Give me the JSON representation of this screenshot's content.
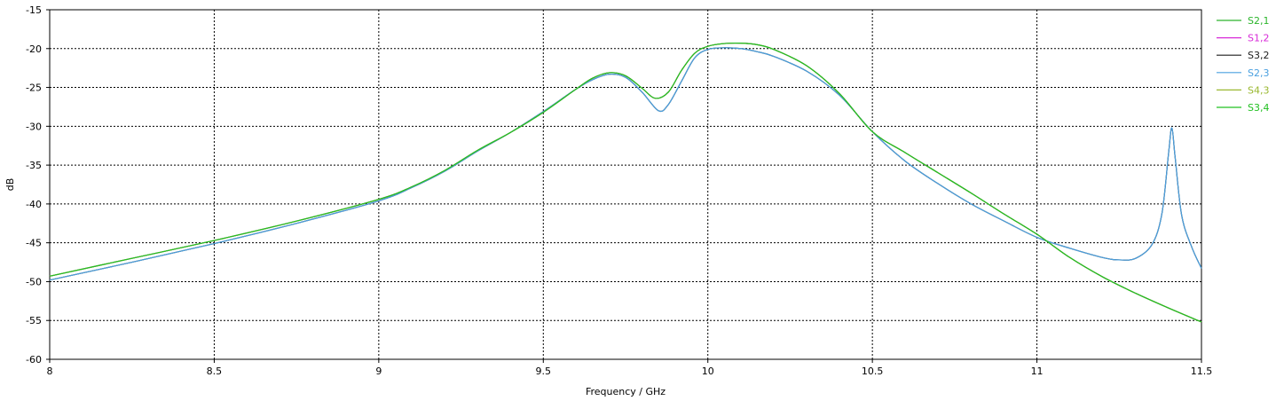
{
  "chart_data": {
    "type": "line",
    "title": "",
    "xlabel": "Frequency / GHz",
    "ylabel": "dB",
    "xlim": [
      8,
      11.5
    ],
    "ylim": [
      -60,
      -15
    ],
    "grid": true,
    "legend_position": "right",
    "x_ticks": [
      "8",
      "8.5",
      "9",
      "9.5",
      "10",
      "10.5",
      "11",
      "11.5"
    ],
    "y_ticks": [
      "-15",
      "-20",
      "-25",
      "-30",
      "-35",
      "-40",
      "-45",
      "-50",
      "-55",
      "-60"
    ],
    "series": [
      {
        "name": "S2,1",
        "color": "#2cb52c",
        "x": [
          8,
          8.25,
          8.5,
          8.75,
          9,
          9.1,
          9.2,
          9.3,
          9.4,
          9.5,
          9.6,
          9.65,
          9.7,
          9.75,
          9.8,
          9.84,
          9.88,
          9.92,
          9.96,
          10,
          10.05,
          10.1,
          10.15,
          10.2,
          10.3,
          10.4,
          10.5,
          10.6,
          10.7,
          10.8,
          10.9,
          11,
          11.1,
          11.2,
          11.3,
          11.4,
          11.5
        ],
        "y": [
          -49.3,
          -47.0,
          -44.7,
          -42.2,
          -39.4,
          -37.8,
          -35.7,
          -33.1,
          -30.8,
          -28.2,
          -25.2,
          -23.8,
          -23.1,
          -23.5,
          -25.1,
          -26.4,
          -25.6,
          -22.8,
          -20.6,
          -19.7,
          -19.35,
          -19.3,
          -19.5,
          -20.1,
          -22.2,
          -25.8,
          -30.7,
          -33.4,
          -36.0,
          -38.6,
          -41.3,
          -43.9,
          -46.9,
          -49.4,
          -51.5,
          -53.4,
          -55.2
        ]
      },
      {
        "name": "S1,2",
        "color": "#d82bd8",
        "x": [
          8,
          8.25,
          8.5,
          8.75,
          9,
          9.1,
          9.2,
          9.3,
          9.4,
          9.5,
          9.6,
          9.65,
          9.7,
          9.75,
          9.8,
          9.84,
          9.88,
          9.92,
          9.96,
          10,
          10.05,
          10.1,
          10.15,
          10.2,
          10.3,
          10.4,
          10.5,
          10.6,
          10.7,
          10.8,
          10.9,
          11,
          11.1,
          11.2,
          11.3,
          11.4,
          11.5
        ],
        "y": [
          -49.3,
          -47.0,
          -44.7,
          -42.2,
          -39.4,
          -37.8,
          -35.7,
          -33.1,
          -30.8,
          -28.2,
          -25.2,
          -23.8,
          -23.1,
          -23.5,
          -25.1,
          -26.4,
          -25.6,
          -22.8,
          -20.6,
          -19.7,
          -19.35,
          -19.3,
          -19.5,
          -20.1,
          -22.2,
          -25.8,
          -30.7,
          -33.4,
          -36.0,
          -38.6,
          -41.3,
          -43.9,
          -46.9,
          -49.4,
          -51.5,
          -53.4,
          -55.2
        ]
      },
      {
        "name": "S3,2",
        "color": "#1c1c1c",
        "x": [
          8,
          8.25,
          8.5,
          8.75,
          9,
          9.1,
          9.2,
          9.3,
          9.4,
          9.5,
          9.6,
          9.65,
          9.7,
          9.75,
          9.8,
          9.85,
          9.88,
          9.92,
          9.96,
          10,
          10.05,
          10.1,
          10.15,
          10.2,
          10.3,
          10.4,
          10.5,
          10.6,
          10.7,
          10.8,
          10.9,
          11,
          11.1,
          11.2,
          11.25,
          11.3,
          11.35,
          11.38,
          11.4,
          11.41,
          11.42,
          11.44,
          11.47,
          11.5
        ],
        "y": [
          -49.8,
          -47.5,
          -45.1,
          -42.5,
          -39.6,
          -37.9,
          -35.8,
          -33.2,
          -30.8,
          -28.1,
          -25.2,
          -24.0,
          -23.3,
          -23.7,
          -25.6,
          -28.0,
          -27.2,
          -24.2,
          -21.2,
          -20.1,
          -19.9,
          -20.0,
          -20.4,
          -21.0,
          -22.9,
          -26.0,
          -30.7,
          -34.5,
          -37.4,
          -40.0,
          -42.2,
          -44.3,
          -45.7,
          -46.9,
          -47.2,
          -47.0,
          -45.2,
          -41.2,
          -33.5,
          -30.2,
          -34.0,
          -41.5,
          -45.5,
          -48.3
        ]
      },
      {
        "name": "S2,3",
        "color": "#4aa0e0",
        "x": [
          8,
          8.25,
          8.5,
          8.75,
          9,
          9.1,
          9.2,
          9.3,
          9.4,
          9.5,
          9.6,
          9.65,
          9.7,
          9.75,
          9.8,
          9.85,
          9.88,
          9.92,
          9.96,
          10,
          10.05,
          10.1,
          10.15,
          10.2,
          10.3,
          10.4,
          10.5,
          10.6,
          10.7,
          10.8,
          10.9,
          11,
          11.1,
          11.2,
          11.25,
          11.3,
          11.35,
          11.38,
          11.4,
          11.41,
          11.42,
          11.44,
          11.47,
          11.5
        ],
        "y": [
          -49.8,
          -47.5,
          -45.1,
          -42.5,
          -39.6,
          -37.9,
          -35.8,
          -33.2,
          -30.8,
          -28.1,
          -25.2,
          -24.0,
          -23.3,
          -23.7,
          -25.6,
          -28.0,
          -27.2,
          -24.2,
          -21.2,
          -20.1,
          -19.9,
          -20.0,
          -20.4,
          -21.0,
          -22.9,
          -26.0,
          -30.7,
          -34.5,
          -37.4,
          -40.0,
          -42.2,
          -44.3,
          -45.7,
          -46.9,
          -47.2,
          -47.0,
          -45.2,
          -41.2,
          -33.5,
          -30.2,
          -34.0,
          -41.5,
          -45.5,
          -48.3
        ]
      },
      {
        "name": "S4,3",
        "color": "#9ab830",
        "x": [
          8,
          8.25,
          8.5,
          8.75,
          9,
          9.1,
          9.2,
          9.3,
          9.4,
          9.5,
          9.6,
          9.65,
          9.7,
          9.75,
          9.8,
          9.84,
          9.88,
          9.92,
          9.96,
          10,
          10.05,
          10.1,
          10.15,
          10.2,
          10.3,
          10.4,
          10.5,
          10.6,
          10.7,
          10.8,
          10.9,
          11,
          11.1,
          11.2,
          11.3,
          11.4,
          11.5
        ],
        "y": [
          -49.3,
          -47.0,
          -44.7,
          -42.2,
          -39.4,
          -37.8,
          -35.7,
          -33.1,
          -30.8,
          -28.2,
          -25.2,
          -23.8,
          -23.1,
          -23.5,
          -25.1,
          -26.4,
          -25.6,
          -22.8,
          -20.6,
          -19.7,
          -19.35,
          -19.3,
          -19.5,
          -20.1,
          -22.2,
          -25.8,
          -30.7,
          -33.4,
          -36.0,
          -38.6,
          -41.3,
          -43.9,
          -46.9,
          -49.4,
          -51.5,
          -53.4,
          -55.2
        ]
      },
      {
        "name": "S3,4",
        "color": "#22c022",
        "x": [
          8,
          8.25,
          8.5,
          8.75,
          9,
          9.1,
          9.2,
          9.3,
          9.4,
          9.5,
          9.6,
          9.65,
          9.7,
          9.75,
          9.8,
          9.84,
          9.88,
          9.92,
          9.96,
          10,
          10.05,
          10.1,
          10.15,
          10.2,
          10.3,
          10.4,
          10.5,
          10.6,
          10.7,
          10.8,
          10.9,
          11,
          11.1,
          11.2,
          11.3,
          11.4,
          11.5
        ],
        "y": [
          -49.3,
          -47.0,
          -44.7,
          -42.2,
          -39.4,
          -37.8,
          -35.7,
          -33.1,
          -30.8,
          -28.2,
          -25.2,
          -23.8,
          -23.1,
          -23.5,
          -25.1,
          -26.4,
          -25.6,
          -22.8,
          -20.6,
          -19.7,
          -19.35,
          -19.3,
          -19.5,
          -20.1,
          -22.2,
          -25.8,
          -30.7,
          -33.4,
          -36.0,
          -38.6,
          -41.3,
          -43.9,
          -46.9,
          -49.4,
          -51.5,
          -53.4,
          -55.2
        ]
      }
    ]
  }
}
